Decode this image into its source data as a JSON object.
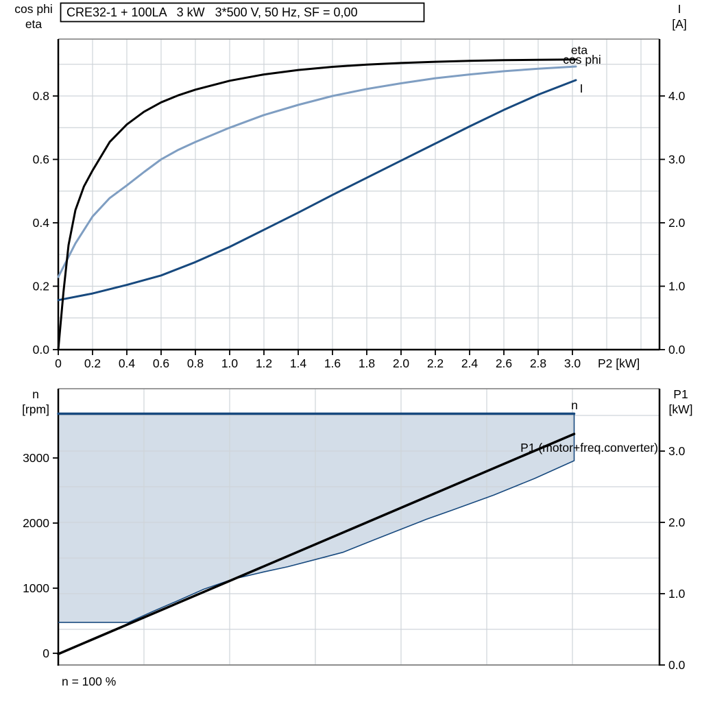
{
  "footer": {
    "speed_note": "n = 100 %"
  },
  "colors": {
    "eta": "#000000",
    "cos_phi": "#7f9ec2",
    "current": "#17497e",
    "speed": "#17497e",
    "p1_line": "#000000",
    "area": "#d3dde8",
    "grid": "#cfd4d9",
    "frame_gray": "#8c8c8c",
    "axis": "#000000",
    "title_border": "#000000",
    "background": "#ffffff"
  },
  "chart_data": [
    {
      "type": "line",
      "name": "motor-performance",
      "title": "CRE32-1 + 100LA   3 kW   3*500 V, 50 Hz, SF = 0,00",
      "x_axis": {
        "label": "P2 [kW]",
        "lim": [
          0,
          3.508
        ],
        "tick_values": [
          0,
          0.2,
          0.4,
          0.6,
          0.8,
          1.0,
          1.2,
          1.4,
          1.6,
          1.8,
          2.0,
          2.2,
          2.4,
          2.6,
          2.8,
          3.0
        ],
        "tick_labels": [
          "0",
          "0.2",
          "0.4",
          "0.6",
          "0.8",
          "1.0",
          "1.2",
          "1.4",
          "1.6",
          "1.8",
          "2.0",
          "2.2",
          "2.4",
          "2.6",
          "2.8",
          "3.0"
        ],
        "grid_values": [
          0.2,
          0.4,
          0.6,
          0.8,
          1.0,
          1.2,
          1.4,
          1.6,
          1.8,
          2.0,
          2.2,
          2.4,
          2.6,
          2.8,
          3.0,
          3.2,
          3.4
        ]
      },
      "y_left": {
        "label_lines": [
          "cos phi",
          "eta"
        ],
        "lim": [
          0,
          0.9795
        ],
        "tick_values": [
          0,
          0.2,
          0.4,
          0.6,
          0.8
        ],
        "tick_labels": [
          "0.0",
          "0.2",
          "0.4",
          "0.6",
          "0.8"
        ],
        "grid_values": [
          0.1,
          0.2,
          0.3,
          0.4,
          0.5,
          0.6,
          0.7,
          0.8,
          0.9
        ]
      },
      "y_right": {
        "label_lines": [
          "I",
          "[A]"
        ],
        "lim": [
          0,
          4.897
        ],
        "tick_values": [
          0,
          1,
          2,
          3,
          4
        ],
        "tick_labels": [
          "0.0",
          "1.0",
          "2.0",
          "3.0",
          "4.0"
        ],
        "grid_values": []
      },
      "series": [
        {
          "name": "cos phi",
          "label": "cos phi",
          "axis": "left",
          "color": "cos_phi",
          "width": 3,
          "points": [
            [
              0,
              0.229
            ],
            [
              0.1,
              0.335
            ],
            [
              0.2,
              0.42
            ],
            [
              0.3,
              0.478
            ],
            [
              0.4,
              0.518
            ],
            [
              0.5,
              0.56
            ],
            [
              0.6,
              0.6
            ],
            [
              0.7,
              0.63
            ],
            [
              0.8,
              0.655
            ],
            [
              1.0,
              0.7
            ],
            [
              1.2,
              0.74
            ],
            [
              1.4,
              0.772
            ],
            [
              1.6,
              0.8
            ],
            [
              1.8,
              0.822
            ],
            [
              2.0,
              0.84
            ],
            [
              2.2,
              0.856
            ],
            [
              2.4,
              0.868
            ],
            [
              2.6,
              0.878
            ],
            [
              2.8,
              0.886
            ],
            [
              3.02,
              0.893
            ]
          ]
        },
        {
          "name": "I",
          "label": "I",
          "axis": "right",
          "color": "current",
          "width": 3,
          "points": [
            [
              0,
              0.78
            ],
            [
              0.2,
              0.885
            ],
            [
              0.4,
              1.02
            ],
            [
              0.6,
              1.17
            ],
            [
              0.8,
              1.38
            ],
            [
              1.0,
              1.62
            ],
            [
              1.2,
              1.89
            ],
            [
              1.4,
              2.16
            ],
            [
              1.6,
              2.44
            ],
            [
              1.8,
              2.71
            ],
            [
              2.0,
              2.98
            ],
            [
              2.2,
              3.25
            ],
            [
              2.4,
              3.52
            ],
            [
              2.6,
              3.78
            ],
            [
              2.8,
              4.02
            ],
            [
              3.02,
              4.25
            ]
          ]
        },
        {
          "name": "eta",
          "label": "eta",
          "axis": "left",
          "color": "eta",
          "width": 3,
          "points": [
            [
              0,
              0
            ],
            [
              0.03,
              0.18
            ],
            [
              0.06,
              0.33
            ],
            [
              0.1,
              0.44
            ],
            [
              0.15,
              0.515
            ],
            [
              0.2,
              0.565
            ],
            [
              0.3,
              0.655
            ],
            [
              0.4,
              0.71
            ],
            [
              0.5,
              0.75
            ],
            [
              0.6,
              0.78
            ],
            [
              0.7,
              0.802
            ],
            [
              0.8,
              0.82
            ],
            [
              1.0,
              0.848
            ],
            [
              1.2,
              0.868
            ],
            [
              1.4,
              0.882
            ],
            [
              1.6,
              0.892
            ],
            [
              1.8,
              0.899
            ],
            [
              2.0,
              0.904
            ],
            [
              2.2,
              0.908
            ],
            [
              2.4,
              0.911
            ],
            [
              2.6,
              0.913
            ],
            [
              2.8,
              0.914
            ],
            [
              3.02,
              0.915
            ]
          ]
        }
      ]
    },
    {
      "type": "line",
      "name": "speed-and-input-power",
      "title": "",
      "x_axis": {
        "label": "",
        "lim": [
          0,
          3.508
        ],
        "tick_values": [],
        "tick_labels": [],
        "grid_values": [
          0.5,
          1.0,
          1.5,
          2.0,
          2.5,
          3.0
        ]
      },
      "y_left": {
        "label_lines": [
          "n",
          "[rpm]"
        ],
        "lim": [
          -180,
          4064
        ],
        "tick_values": [
          0,
          1000,
          2000,
          3000
        ],
        "tick_labels": [
          "0",
          "1000",
          "2000",
          "3000"
        ],
        "grid_values": []
      },
      "y_right": {
        "label_lines": [
          "P1",
          "[kW]"
        ],
        "lim": [
          0,
          3.875
        ],
        "tick_values": [
          0,
          1,
          2,
          3
        ],
        "tick_labels": [
          "0.0",
          "1.0",
          "2.0",
          "3.0"
        ],
        "grid_values": [
          0.5,
          1.0,
          1.5,
          2.0,
          2.5,
          3.0,
          3.5
        ]
      },
      "area": {
        "name": "speed-operating-range",
        "upper_rpm": 3680,
        "lower_boundary_rpm": [
          [
            0,
            475
          ],
          [
            0.41,
            475
          ],
          [
            0.55,
            640
          ],
          [
            0.7,
            810
          ],
          [
            0.85,
            985
          ],
          [
            1.02,
            1140
          ],
          [
            1.2,
            1250
          ],
          [
            1.34,
            1330
          ],
          [
            1.5,
            1440
          ],
          [
            1.66,
            1550
          ],
          [
            1.85,
            1750
          ],
          [
            2.0,
            1905
          ],
          [
            2.15,
            2060
          ],
          [
            2.3,
            2200
          ],
          [
            2.54,
            2430
          ],
          [
            2.78,
            2685
          ],
          [
            3.01,
            2958
          ]
        ]
      },
      "series": [
        {
          "name": "n",
          "label": "n",
          "axis": "left",
          "color": "speed",
          "width": 3.5,
          "points": [
            [
              0,
              3680
            ],
            [
              3.01,
              3680
            ]
          ]
        },
        {
          "name": "P1 (motor+freq.converter)",
          "label": "P1 (motor+freq.converter)",
          "axis": "right",
          "color": "p1_line",
          "width": 3.5,
          "points": [
            [
              0,
              0.154
            ],
            [
              3.01,
              3.24
            ]
          ]
        }
      ]
    }
  ]
}
